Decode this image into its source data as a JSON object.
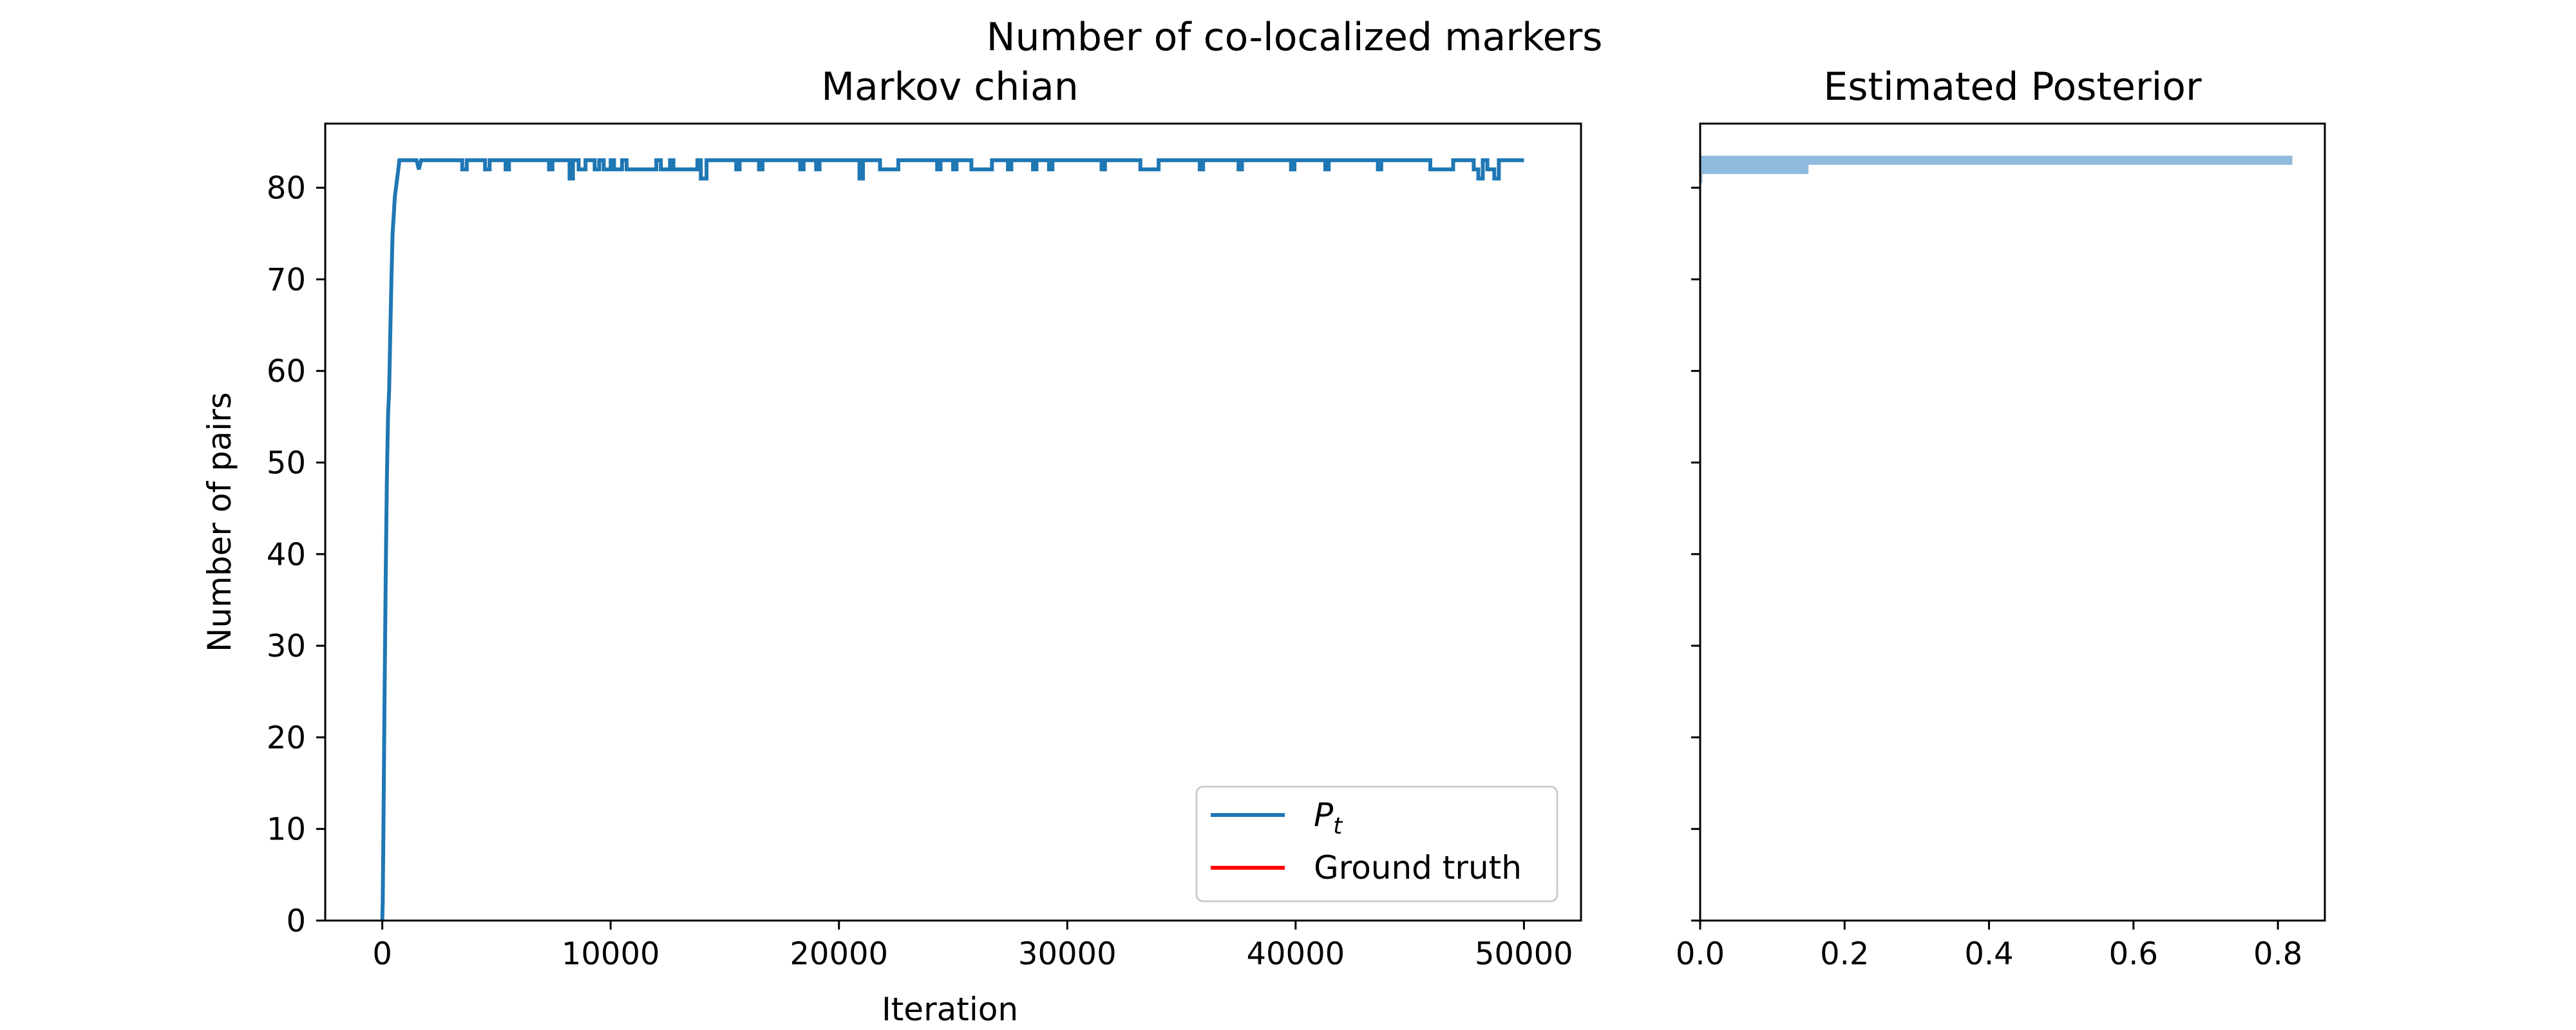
{
  "figure": {
    "suptitle": "Number of co-localized markers"
  },
  "colors": {
    "trace": "#1f77b4",
    "ground_truth": "#ff0000",
    "posterior": "#8fbadd"
  },
  "chart_data": [
    {
      "type": "line",
      "title": "Markov chian",
      "xlabel": "Iteration",
      "ylabel": "Number of pairs",
      "xlim": [
        -2500,
        52500
      ],
      "ylim": [
        0,
        87
      ],
      "xticks": [
        0,
        10000,
        20000,
        30000,
        40000,
        50000
      ],
      "yticks": [
        0,
        10,
        20,
        30,
        40,
        50,
        60,
        70,
        80
      ],
      "legend": {
        "placement": "lower-right",
        "entries": [
          "P_t",
          "Ground truth"
        ]
      },
      "series": [
        {
          "name": "P_t",
          "symbol": "P",
          "subscript": "t",
          "color": "#1f77b4",
          "x": [
            0,
            20,
            50,
            100,
            150,
            200,
            250,
            300,
            350,
            400,
            450,
            500,
            550,
            600,
            650,
            700,
            750,
            800,
            900,
            1000,
            1100,
            1200,
            1300,
            1500,
            1600,
            1700,
            2000,
            3500,
            3500,
            3700,
            3700,
            4500,
            4500,
            4700,
            4700,
            5400,
            5400,
            5550,
            5550,
            7300,
            7300,
            7450,
            7450,
            8200,
            8200,
            8350,
            8350,
            8600,
            8600,
            8900,
            8900,
            9300,
            9300,
            9500,
            9500,
            9700,
            9700,
            10000,
            10000,
            10150,
            10150,
            10500,
            10500,
            10700,
            10700,
            12000,
            12000,
            12200,
            12200,
            12600,
            12600,
            12750,
            12750,
            13800,
            13800,
            13950,
            13950,
            14200,
            14200,
            15500,
            15500,
            15650,
            15650,
            16500,
            16500,
            16650,
            16650,
            18300,
            18300,
            18450,
            18450,
            19000,
            19000,
            19150,
            19150,
            20900,
            20900,
            21050,
            21050,
            21800,
            21800,
            22600,
            22600,
            24300,
            24300,
            24450,
            24450,
            25000,
            25000,
            25150,
            25150,
            25800,
            25800,
            26700,
            26700,
            27400,
            27400,
            27550,
            27550,
            28500,
            28500,
            28650,
            28650,
            29200,
            29200,
            29350,
            29350,
            31500,
            31500,
            31650,
            31650,
            33200,
            33200,
            34000,
            34000,
            35800,
            35800,
            35950,
            35950,
            37500,
            37500,
            37650,
            37650,
            39800,
            39800,
            39950,
            39950,
            41300,
            41300,
            41450,
            41450,
            43600,
            43600,
            43750,
            43750,
            45900,
            45900,
            46900,
            46900,
            47800,
            47800,
            48000,
            48000,
            48200,
            48200,
            48400,
            48400,
            48700,
            48700,
            48900,
            48900,
            50000
          ],
          "y": [
            0,
            2,
            10,
            25,
            38,
            48,
            55,
            58,
            64,
            70,
            75,
            77,
            79,
            80,
            81,
            82,
            83,
            83,
            83,
            83,
            83,
            83,
            83,
            83,
            82,
            83,
            83,
            83,
            82,
            82,
            83,
            83,
            82,
            82,
            83,
            83,
            82,
            82,
            83,
            83,
            82,
            82,
            83,
            83,
            81,
            81,
            83,
            83,
            82,
            82,
            83,
            83,
            82,
            82,
            83,
            83,
            82,
            82,
            83,
            83,
            82,
            82,
            83,
            83,
            82,
            82,
            83,
            83,
            82,
            82,
            83,
            83,
            82,
            82,
            83,
            83,
            81,
            81,
            83,
            83,
            82,
            82,
            83,
            83,
            82,
            82,
            83,
            83,
            82,
            82,
            83,
            83,
            82,
            82,
            83,
            83,
            81,
            81,
            83,
            83,
            82,
            82,
            83,
            83,
            82,
            82,
            83,
            83,
            82,
            82,
            83,
            83,
            82,
            82,
            83,
            83,
            82,
            82,
            83,
            83,
            82,
            82,
            83,
            83,
            82,
            82,
            83,
            83,
            82,
            82,
            83,
            83,
            82,
            82,
            83,
            83,
            82,
            82,
            83,
            83,
            82,
            82,
            83,
            83,
            82,
            82,
            83,
            83,
            82,
            82,
            83,
            83,
            82,
            82,
            83,
            83,
            82,
            82,
            83,
            83,
            82,
            82,
            81,
            81,
            83,
            83,
            82,
            82,
            81,
            81,
            83,
            83
          ]
        },
        {
          "name": "Ground truth",
          "color": "#ff0000",
          "x": [],
          "y": []
        }
      ]
    },
    {
      "type": "bar",
      "orientation": "horizontal",
      "title": "Estimated Posterior",
      "xlim": [
        0,
        0.865
      ],
      "ylim": [
        0,
        87
      ],
      "xticks": [
        0.0,
        0.2,
        0.4,
        0.6,
        0.8
      ],
      "xtick_labels": [
        "0.0",
        "0.2",
        "0.4",
        "0.6",
        "0.8"
      ],
      "categories": [
        81,
        82,
        83
      ],
      "values": [
        0.003,
        0.15,
        0.82
      ],
      "color": "#8fbadd"
    }
  ]
}
